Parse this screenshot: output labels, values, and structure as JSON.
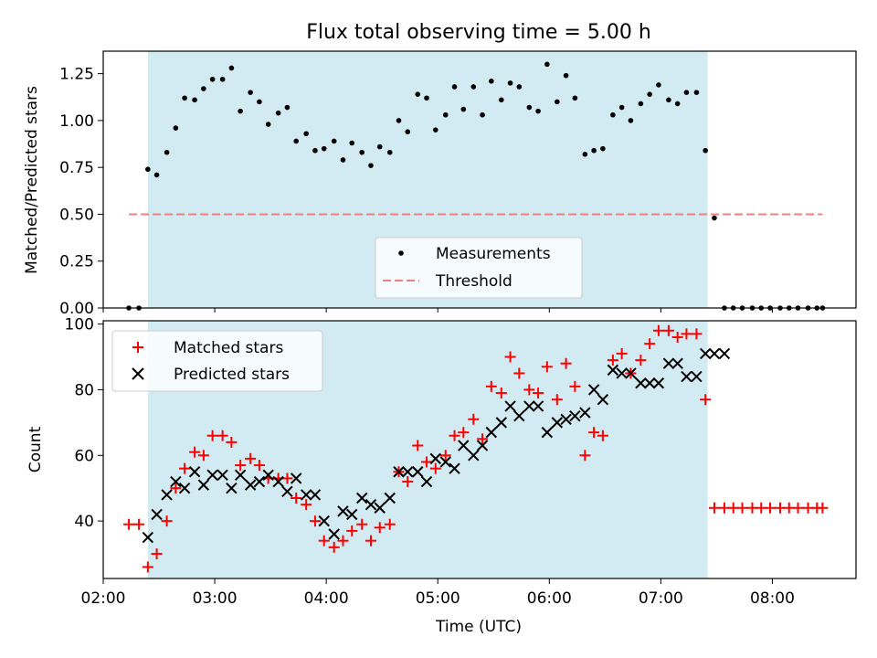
{
  "colors": {
    "shade": "#add8e6",
    "measurement": "#000000",
    "threshold": "#f08080",
    "matched": "#ff0000",
    "predicted": "#000000"
  },
  "chart_data": [
    {
      "type": "scatter",
      "title": "Flux total observing time = 5.00 h",
      "xlabel": "",
      "ylabel": "Matched/Predicted stars",
      "xlim": [
        2.0,
        8.75
      ],
      "ylim": [
        0,
        1.37
      ],
      "yticks": [
        0,
        0.25,
        0.5,
        0.75,
        1.0,
        1.25
      ],
      "ytick_labels": [
        "0.00",
        "0.25",
        "0.50",
        "0.75",
        "1.00",
        "1.25"
      ],
      "shaded_interval": [
        2.4,
        7.42
      ],
      "threshold": {
        "y": 0.5,
        "x_range": [
          2.23,
          8.45
        ]
      },
      "legend": {
        "position": "lower center",
        "entries": [
          "Measurements",
          "Threshold"
        ]
      },
      "series": [
        {
          "name": "Measurements",
          "marker": "dot",
          "x": [
            2.23,
            2.32,
            2.4,
            2.48,
            2.57,
            2.65,
            2.73,
            2.82,
            2.9,
            2.98,
            3.07,
            3.15,
            3.23,
            3.32,
            3.4,
            3.48,
            3.57,
            3.65,
            3.73,
            3.82,
            3.9,
            3.98,
            4.07,
            4.15,
            4.23,
            4.32,
            4.4,
            4.48,
            4.57,
            4.65,
            4.73,
            4.82,
            4.9,
            4.98,
            5.07,
            5.15,
            5.23,
            5.32,
            5.4,
            5.48,
            5.57,
            5.65,
            5.73,
            5.82,
            5.9,
            5.98,
            6.07,
            6.15,
            6.23,
            6.32,
            6.4,
            6.48,
            6.57,
            6.65,
            6.73,
            6.82,
            6.9,
            6.98,
            7.07,
            7.15,
            7.23,
            7.32,
            7.4,
            7.48,
            7.57,
            7.65,
            7.73,
            7.82,
            7.9,
            7.98,
            8.07,
            8.15,
            8.23,
            8.32,
            8.4,
            8.45
          ],
          "y": [
            0.0,
            0.0,
            0.74,
            0.71,
            0.83,
            0.96,
            1.12,
            1.11,
            1.17,
            1.22,
            1.22,
            1.28,
            1.05,
            1.15,
            1.1,
            0.98,
            1.04,
            1.07,
            0.89,
            0.93,
            0.84,
            0.85,
            0.89,
            0.79,
            0.88,
            0.83,
            0.76,
            0.86,
            0.83,
            1.0,
            0.94,
            1.14,
            1.12,
            0.95,
            1.03,
            1.18,
            1.06,
            1.18,
            1.03,
            1.21,
            1.11,
            1.2,
            1.18,
            1.07,
            1.05,
            1.3,
            1.1,
            1.24,
            1.12,
            0.82,
            0.84,
            0.85,
            1.03,
            1.07,
            1.0,
            1.09,
            1.14,
            1.19,
            1.11,
            1.09,
            1.15,
            1.15,
            0.84,
            0.48,
            0.0,
            0.0,
            0.0,
            0.0,
            0.0,
            0.0,
            0.0,
            0.0,
            0.0,
            0.0,
            0.0,
            0.0
          ]
        }
      ]
    },
    {
      "type": "scatter",
      "title": "",
      "xlabel": "Time (UTC)",
      "ylabel": "Count",
      "xlim": [
        2.0,
        8.75
      ],
      "ylim": [
        22.5,
        101
      ],
      "yticks": [
        40,
        60,
        80,
        100
      ],
      "ytick_labels": [
        "40",
        "60",
        "80",
        "100"
      ],
      "xticks": [
        2,
        3,
        4,
        5,
        6,
        7,
        8
      ],
      "xtick_labels": [
        "02:00",
        "03:00",
        "04:00",
        "05:00",
        "06:00",
        "07:00",
        "08:00"
      ],
      "shaded_interval": [
        2.4,
        7.42
      ],
      "legend": {
        "position": "upper left",
        "entries": [
          "Matched stars",
          "Predicted stars"
        ]
      },
      "series": [
        {
          "name": "Matched stars",
          "marker": "plus",
          "x": [
            2.23,
            2.32,
            2.4,
            2.48,
            2.57,
            2.65,
            2.73,
            2.82,
            2.9,
            2.98,
            3.07,
            3.15,
            3.23,
            3.32,
            3.4,
            3.48,
            3.57,
            3.65,
            3.73,
            3.82,
            3.9,
            3.98,
            4.07,
            4.15,
            4.23,
            4.32,
            4.4,
            4.48,
            4.57,
            4.65,
            4.73,
            4.82,
            4.9,
            4.98,
            5.07,
            5.15,
            5.23,
            5.32,
            5.4,
            5.48,
            5.57,
            5.65,
            5.73,
            5.82,
            5.9,
            5.98,
            6.07,
            6.15,
            6.23,
            6.32,
            6.4,
            6.48,
            6.57,
            6.65,
            6.73,
            6.82,
            6.9,
            6.98,
            7.07,
            7.15,
            7.23,
            7.32,
            7.4,
            7.48,
            7.57,
            7.65,
            7.73,
            7.82,
            7.9,
            7.98,
            8.07,
            8.15,
            8.23,
            8.32,
            8.4,
            8.45
          ],
          "y": [
            39,
            39,
            26,
            30,
            40,
            50,
            56,
            61,
            60,
            66,
            66,
            64,
            57,
            59,
            57,
            53,
            53,
            53,
            47,
            45,
            40,
            34,
            32,
            34,
            37,
            39,
            34,
            38,
            39,
            55,
            52,
            63,
            58,
            56,
            60,
            66,
            67,
            71,
            65,
            81,
            79,
            90,
            85,
            80,
            79,
            87,
            77,
            88,
            81,
            60,
            67,
            66,
            89,
            91,
            85,
            89,
            94,
            98,
            98,
            96,
            97,
            97,
            77,
            44,
            44,
            44,
            44,
            44,
            44,
            44,
            44,
            44,
            44,
            44,
            44,
            44
          ]
        },
        {
          "name": "Predicted stars",
          "marker": "x",
          "x": [
            2.4,
            2.48,
            2.57,
            2.65,
            2.73,
            2.82,
            2.9,
            2.98,
            3.07,
            3.15,
            3.23,
            3.32,
            3.4,
            3.48,
            3.57,
            3.65,
            3.73,
            3.82,
            3.9,
            3.98,
            4.07,
            4.15,
            4.23,
            4.32,
            4.4,
            4.48,
            4.57,
            4.65,
            4.73,
            4.82,
            4.9,
            4.98,
            5.07,
            5.15,
            5.23,
            5.32,
            5.4,
            5.48,
            5.57,
            5.65,
            5.73,
            5.82,
            5.9,
            5.98,
            6.07,
            6.15,
            6.23,
            6.32,
            6.4,
            6.48,
            6.57,
            6.65,
            6.73,
            6.82,
            6.9,
            6.98,
            7.07,
            7.15,
            7.23,
            7.32,
            7.4,
            7.48,
            7.57
          ],
          "y": [
            35,
            42,
            48,
            52,
            50,
            55,
            51,
            54,
            54,
            50,
            54,
            51,
            52,
            54,
            52,
            49,
            53,
            48,
            48,
            40,
            36,
            43,
            42,
            47,
            45,
            44,
            47,
            55,
            55,
            55,
            52,
            59,
            58,
            56,
            63,
            60,
            63,
            67,
            70,
            75,
            72,
            75,
            75,
            67,
            70,
            71,
            72,
            73,
            80,
            77,
            86,
            85,
            85,
            82,
            82,
            82,
            88,
            88,
            84,
            84,
            91,
            91,
            91
          ]
        }
      ]
    }
  ]
}
